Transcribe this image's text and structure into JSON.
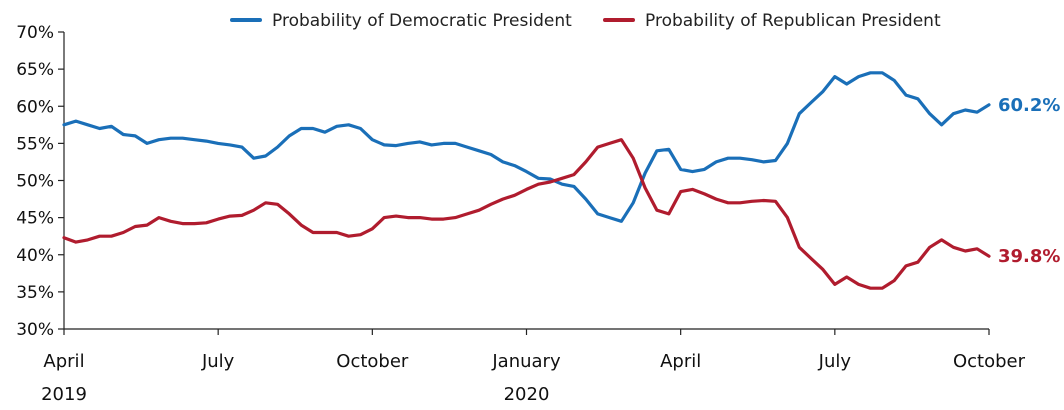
{
  "chart_data": {
    "type": "line",
    "title": "",
    "xlabel": "",
    "ylabel": "",
    "ylim": [
      30,
      70
    ],
    "y_ticks": [
      "30%",
      "35%",
      "40%",
      "45%",
      "50%",
      "55%",
      "60%",
      "65%",
      "70%"
    ],
    "y_tick_values": [
      30,
      35,
      40,
      45,
      50,
      55,
      60,
      65,
      70
    ],
    "x_range_weeks": [
      0,
      78
    ],
    "x_ticks": [
      {
        "label": "April",
        "sub": "2019",
        "week": 0
      },
      {
        "label": "July",
        "sub": "",
        "week": 13
      },
      {
        "label": "October",
        "sub": "",
        "week": 26
      },
      {
        "label": "January",
        "sub": "2020",
        "week": 39
      },
      {
        "label": "April",
        "sub": "",
        "week": 52
      },
      {
        "label": "July",
        "sub": "",
        "week": 65
      },
      {
        "label": "October",
        "sub": "",
        "week": 78
      }
    ],
    "legend_position": "top",
    "series": [
      {
        "name": "Probability of Democratic President",
        "color": "#1a6fb8",
        "end_label": "60.2%",
        "points": [
          [
            0,
            57.5
          ],
          [
            1,
            58
          ],
          [
            2,
            57.5
          ],
          [
            3,
            57
          ],
          [
            4,
            57.3
          ],
          [
            5,
            56.2
          ],
          [
            6,
            56
          ],
          [
            7,
            55
          ],
          [
            8,
            55.5
          ],
          [
            9,
            55.7
          ],
          [
            10,
            55.7
          ],
          [
            11,
            55.5
          ],
          [
            12,
            55.3
          ],
          [
            13,
            55
          ],
          [
            14,
            54.8
          ],
          [
            15,
            54.5
          ],
          [
            16,
            53
          ],
          [
            17,
            53.3
          ],
          [
            18,
            54.5
          ],
          [
            19,
            56
          ],
          [
            20,
            57
          ],
          [
            21,
            57
          ],
          [
            22,
            56.5
          ],
          [
            23,
            57.3
          ],
          [
            24,
            57.5
          ],
          [
            25,
            57
          ],
          [
            26,
            55.5
          ],
          [
            27,
            54.8
          ],
          [
            28,
            54.7
          ],
          [
            29,
            55
          ],
          [
            30,
            55.2
          ],
          [
            31,
            54.8
          ],
          [
            32,
            55
          ],
          [
            33,
            55
          ],
          [
            34,
            54.5
          ],
          [
            35,
            54
          ],
          [
            36,
            53.5
          ],
          [
            37,
            52.5
          ],
          [
            38,
            52
          ],
          [
            39,
            51.2
          ],
          [
            40,
            50.3
          ],
          [
            41,
            50.2
          ],
          [
            42,
            49.5
          ],
          [
            43,
            49.2
          ],
          [
            44,
            47.5
          ],
          [
            45,
            45.5
          ],
          [
            46,
            45
          ],
          [
            47,
            44.5
          ],
          [
            48,
            47
          ],
          [
            49,
            51
          ],
          [
            50,
            54
          ],
          [
            51,
            54.2
          ],
          [
            52,
            51.5
          ],
          [
            53,
            51.2
          ],
          [
            54,
            51.5
          ],
          [
            55,
            52.5
          ],
          [
            56,
            53
          ],
          [
            57,
            53
          ],
          [
            58,
            52.8
          ],
          [
            59,
            52.5
          ],
          [
            60,
            52.7
          ],
          [
            61,
            55
          ],
          [
            62,
            59
          ],
          [
            63,
            60.5
          ],
          [
            64,
            62
          ],
          [
            65,
            64
          ],
          [
            66,
            63
          ],
          [
            67,
            64
          ],
          [
            68,
            64.5
          ],
          [
            69,
            64.5
          ],
          [
            70,
            63.5
          ],
          [
            71,
            61.5
          ],
          [
            72,
            61
          ],
          [
            73,
            59
          ],
          [
            74,
            57.5
          ],
          [
            75,
            59
          ],
          [
            76,
            59.5
          ],
          [
            77,
            59.2
          ],
          [
            78,
            60.2
          ]
        ]
      },
      {
        "name": "Probability of Republican President",
        "color": "#b01c2e",
        "end_label": "39.8%",
        "points": [
          [
            0,
            42.3
          ],
          [
            1,
            41.7
          ],
          [
            2,
            42
          ],
          [
            3,
            42.5
          ],
          [
            4,
            42.5
          ],
          [
            5,
            43
          ],
          [
            6,
            43.8
          ],
          [
            7,
            44
          ],
          [
            8,
            45
          ],
          [
            9,
            44.5
          ],
          [
            10,
            44.2
          ],
          [
            11,
            44.2
          ],
          [
            12,
            44.3
          ],
          [
            13,
            44.8
          ],
          [
            14,
            45.2
          ],
          [
            15,
            45.3
          ],
          [
            16,
            46
          ],
          [
            17,
            47
          ],
          [
            18,
            46.8
          ],
          [
            19,
            45.5
          ],
          [
            20,
            44
          ],
          [
            21,
            43
          ],
          [
            22,
            43
          ],
          [
            23,
            43
          ],
          [
            24,
            42.5
          ],
          [
            25,
            42.7
          ],
          [
            26,
            43.5
          ],
          [
            27,
            45
          ],
          [
            28,
            45.2
          ],
          [
            29,
            45
          ],
          [
            30,
            45
          ],
          [
            31,
            44.8
          ],
          [
            32,
            44.8
          ],
          [
            33,
            45
          ],
          [
            34,
            45.5
          ],
          [
            35,
            46
          ],
          [
            36,
            46.8
          ],
          [
            37,
            47.5
          ],
          [
            38,
            48
          ],
          [
            39,
            48.8
          ],
          [
            40,
            49.5
          ],
          [
            41,
            49.8
          ],
          [
            42,
            50.3
          ],
          [
            43,
            50.8
          ],
          [
            44,
            52.5
          ],
          [
            45,
            54.5
          ],
          [
            46,
            55
          ],
          [
            47,
            55.5
          ],
          [
            48,
            53
          ],
          [
            49,
            49
          ],
          [
            50,
            46
          ],
          [
            51,
            45.5
          ],
          [
            52,
            48.5
          ],
          [
            53,
            48.8
          ],
          [
            54,
            48.2
          ],
          [
            55,
            47.5
          ],
          [
            56,
            47
          ],
          [
            57,
            47
          ],
          [
            58,
            47.2
          ],
          [
            59,
            47.3
          ],
          [
            60,
            47.2
          ],
          [
            61,
            45
          ],
          [
            62,
            41
          ],
          [
            63,
            39.5
          ],
          [
            64,
            38
          ],
          [
            65,
            36
          ],
          [
            66,
            37
          ],
          [
            67,
            36
          ],
          [
            68,
            35.5
          ],
          [
            69,
            35.5
          ],
          [
            70,
            36.5
          ],
          [
            71,
            38.5
          ],
          [
            72,
            39
          ],
          [
            73,
            41
          ],
          [
            74,
            42
          ],
          [
            75,
            41
          ],
          [
            76,
            40.5
          ],
          [
            77,
            40.8
          ],
          [
            78,
            39.8
          ]
        ]
      }
    ]
  }
}
